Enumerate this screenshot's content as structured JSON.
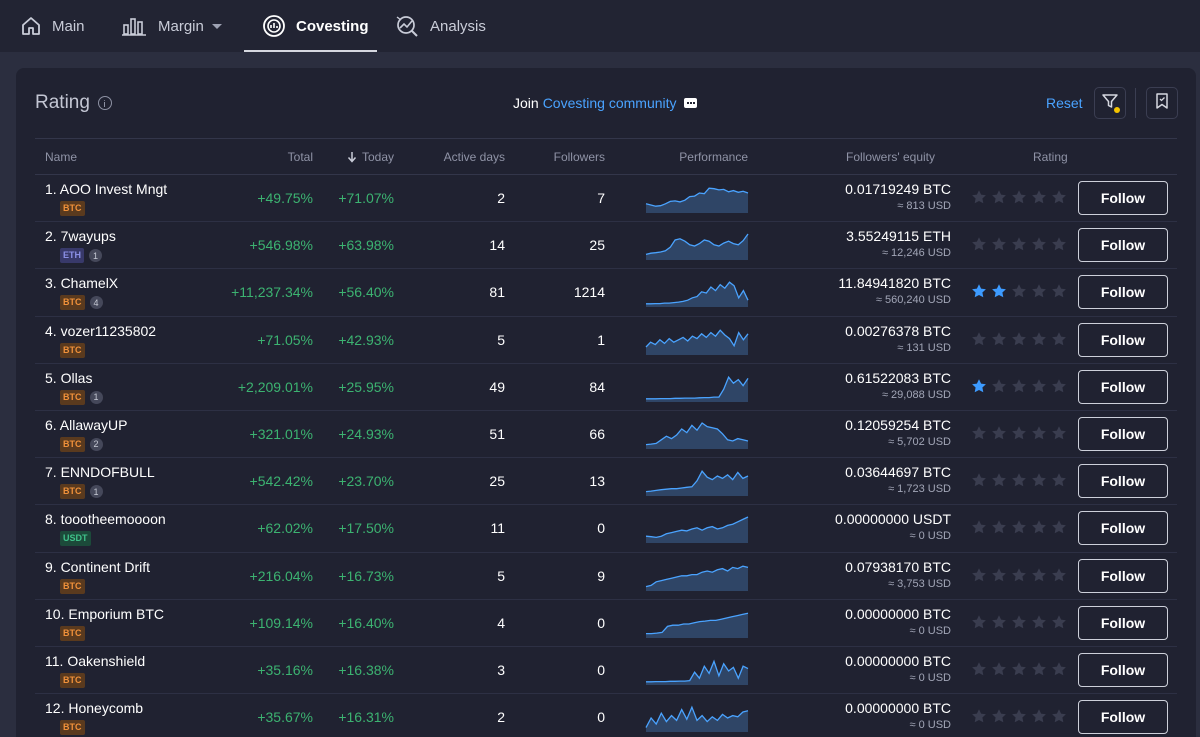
{
  "nav": {
    "items": [
      {
        "label": "Main",
        "icon": "home-icon"
      },
      {
        "label": "Margin",
        "icon": "bar-chart-icon",
        "dropdown": true
      },
      {
        "label": "Covesting",
        "icon": "covesting-icon",
        "active": true
      },
      {
        "label": "Analysis",
        "icon": "analysis-icon"
      }
    ]
  },
  "panel": {
    "title": "Rating",
    "join_prefix": "Join",
    "join_link": "Covesting community",
    "reset": "Reset"
  },
  "table": {
    "headers": {
      "name": "Name",
      "total": "Total",
      "today": "Today",
      "active_days": "Active days",
      "followers": "Followers",
      "performance": "Performance",
      "equity": "Followers' equity",
      "rating": "Rating"
    },
    "follow_label": "Follow",
    "rows": [
      {
        "name": "1. AOO Invest Mngt",
        "currency": "BTC",
        "count": "",
        "total": "+49.75%",
        "today": "+71.07%",
        "active_days": "2",
        "followers": "7",
        "equity": "0.01719249 BTC",
        "equity_usd": "≈ 813 USD",
        "rating": 0,
        "perf": [
          0.3,
          0.25,
          0.2,
          0.22,
          0.3,
          0.4,
          0.42,
          0.38,
          0.45,
          0.6,
          0.62,
          0.75,
          0.72,
          0.95,
          0.93,
          0.88,
          0.9,
          0.8,
          0.85,
          0.78,
          0.82,
          0.75
        ]
      },
      {
        "name": "2. 7wayups",
        "currency": "ETH",
        "count": "1",
        "total": "+546.98%",
        "today": "+63.98%",
        "active_days": "14",
        "followers": "25",
        "equity": "3.55249115 ETH",
        "equity_usd": "≈ 12,246 USD",
        "rating": 0,
        "perf": [
          0.15,
          0.2,
          0.22,
          0.25,
          0.3,
          0.45,
          0.75,
          0.8,
          0.7,
          0.55,
          0.5,
          0.6,
          0.75,
          0.7,
          0.55,
          0.5,
          0.62,
          0.7,
          0.6,
          0.55,
          0.72,
          1.0
        ]
      },
      {
        "name": "3. ChamelX",
        "currency": "BTC",
        "count": "4",
        "total": "+11,237.34%",
        "today": "+56.40%",
        "active_days": "81",
        "followers": "1214",
        "equity": "11.84941820 BTC",
        "equity_usd": "≈ 560,240 USD",
        "rating": 2,
        "perf": [
          0.05,
          0.05,
          0.06,
          0.06,
          0.08,
          0.08,
          0.1,
          0.12,
          0.15,
          0.2,
          0.3,
          0.35,
          0.55,
          0.5,
          0.75,
          0.6,
          0.85,
          0.7,
          0.95,
          0.8,
          0.3,
          0.6,
          0.2
        ]
      },
      {
        "name": "4. vozer11235802",
        "currency": "BTC",
        "count": "",
        "total": "+71.05%",
        "today": "+42.93%",
        "active_days": "5",
        "followers": "1",
        "equity": "0.00276378 BTC",
        "equity_usd": "≈ 131 USD",
        "rating": 0,
        "perf": [
          0.25,
          0.45,
          0.35,
          0.55,
          0.4,
          0.6,
          0.45,
          0.55,
          0.65,
          0.5,
          0.7,
          0.6,
          0.8,
          0.65,
          0.85,
          0.7,
          0.95,
          0.75,
          0.6,
          0.3,
          0.85,
          0.55,
          0.8
        ]
      },
      {
        "name": "5. Ollas",
        "currency": "BTC",
        "count": "1",
        "total": "+2,209.01%",
        "today": "+25.95%",
        "active_days": "49",
        "followers": "84",
        "equity": "0.61522083 BTC",
        "equity_usd": "≈ 29,088 USD",
        "rating": 1,
        "perf": [
          0.05,
          0.05,
          0.05,
          0.06,
          0.06,
          0.06,
          0.07,
          0.07,
          0.08,
          0.08,
          0.08,
          0.09,
          0.1,
          0.1,
          0.12,
          0.12,
          0.45,
          0.95,
          0.7,
          0.85,
          0.6,
          0.9
        ]
      },
      {
        "name": "6. AllawayUP",
        "currency": "BTC",
        "count": "2",
        "total": "+321.01%",
        "today": "+24.93%",
        "active_days": "51",
        "followers": "66",
        "equity": "0.12059254 BTC",
        "equity_usd": "≈ 5,702 USD",
        "rating": 0,
        "perf": [
          0.1,
          0.12,
          0.15,
          0.3,
          0.45,
          0.35,
          0.5,
          0.75,
          0.6,
          0.9,
          0.7,
          1.0,
          0.85,
          0.8,
          0.75,
          0.55,
          0.3,
          0.25,
          0.35,
          0.3,
          0.25
        ]
      },
      {
        "name": "7. ENNDOFBULL",
        "currency": "BTC",
        "count": "1",
        "total": "+542.42%",
        "today": "+23.70%",
        "active_days": "25",
        "followers": "13",
        "equity": "0.03644697 BTC",
        "equity_usd": "≈ 1,723 USD",
        "rating": 0,
        "perf": [
          0.1,
          0.12,
          0.15,
          0.18,
          0.2,
          0.22,
          0.22,
          0.25,
          0.28,
          0.3,
          0.55,
          0.95,
          0.7,
          0.6,
          0.75,
          0.65,
          0.8,
          0.6,
          0.9,
          0.65,
          0.75
        ]
      },
      {
        "name": "8. toootheemoooon",
        "currency": "USDT",
        "count": "",
        "total": "+62.02%",
        "today": "+17.50%",
        "active_days": "11",
        "followers": "0",
        "equity": "0.00000000 USDT",
        "equity_usd": "≈ 0 USD",
        "rating": 0,
        "perf": [
          0.2,
          0.18,
          0.15,
          0.2,
          0.3,
          0.35,
          0.4,
          0.45,
          0.42,
          0.5,
          0.55,
          0.45,
          0.55,
          0.6,
          0.5,
          0.55,
          0.65,
          0.7,
          0.8,
          0.9,
          1.0
        ]
      },
      {
        "name": "9. Continent Drift",
        "currency": "BTC",
        "count": "",
        "total": "+216.04%",
        "today": "+16.73%",
        "active_days": "5",
        "followers": "9",
        "equity": "0.07938170 BTC",
        "equity_usd": "≈ 3,753 USD",
        "rating": 0,
        "perf": [
          0.1,
          0.15,
          0.3,
          0.35,
          0.4,
          0.45,
          0.5,
          0.55,
          0.55,
          0.6,
          0.6,
          0.7,
          0.75,
          0.7,
          0.8,
          0.85,
          0.75,
          0.9,
          0.85,
          0.95,
          0.9
        ]
      },
      {
        "name": "10. Emporium BTC",
        "currency": "BTC",
        "count": "",
        "total": "+109.14%",
        "today": "+16.40%",
        "active_days": "4",
        "followers": "0",
        "equity": "0.00000000 BTC",
        "equity_usd": "≈ 0 USD",
        "rating": 0,
        "perf": [
          0.1,
          0.1,
          0.12,
          0.15,
          0.4,
          0.45,
          0.45,
          0.5,
          0.5,
          0.55,
          0.6,
          0.62,
          0.65,
          0.65,
          0.7,
          0.75,
          0.8,
          0.85,
          0.9,
          0.95
        ]
      },
      {
        "name": "11. Oakenshield",
        "currency": "BTC",
        "count": "",
        "total": "+35.16%",
        "today": "+16.38%",
        "active_days": "3",
        "followers": "0",
        "equity": "0.00000000 BTC",
        "equity_usd": "≈ 0 USD",
        "rating": 0,
        "perf": [
          0.05,
          0.05,
          0.06,
          0.06,
          0.06,
          0.07,
          0.07,
          0.08,
          0.08,
          0.1,
          0.45,
          0.2,
          0.7,
          0.4,
          0.9,
          0.3,
          0.8,
          0.5,
          0.65,
          0.2,
          0.7,
          0.6
        ]
      },
      {
        "name": "12. Honeycomb",
        "currency": "BTC",
        "count": "",
        "total": "+35.67%",
        "today": "+16.31%",
        "active_days": "2",
        "followers": "0",
        "equity": "0.00000000 BTC",
        "equity_usd": "≈ 0 USD",
        "rating": 0,
        "perf": [
          0.1,
          0.5,
          0.25,
          0.7,
          0.35,
          0.6,
          0.4,
          0.85,
          0.45,
          0.95,
          0.4,
          0.6,
          0.35,
          0.55,
          0.4,
          0.65,
          0.5,
          0.6,
          0.55,
          0.75,
          0.8
        ]
      }
    ]
  },
  "colors": {
    "accent": "#4aa3ff",
    "positive": "#3cb371",
    "star_active": "#3d9bff",
    "star_inactive": "#3a3d4f",
    "spark_line": "#4aa3ff",
    "spark_fill": "#2f4566"
  }
}
